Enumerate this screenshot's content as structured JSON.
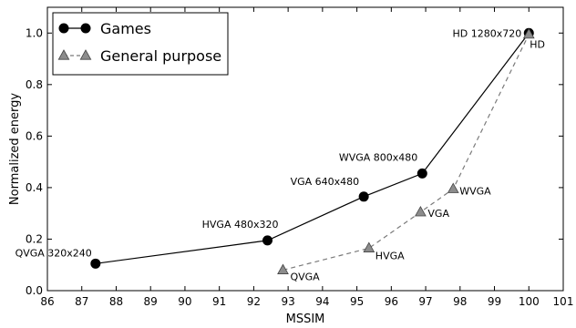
{
  "chart_data": {
    "type": "line",
    "xlabel": "MSSIM",
    "ylabel": "Normalized energy",
    "xlim": [
      86,
      101
    ],
    "ylim": [
      0.0,
      1.1
    ],
    "x_ticks": [
      "86",
      "87",
      "88",
      "89",
      "90",
      "91",
      "92",
      "93",
      "94",
      "95",
      "96",
      "97",
      "98",
      "99",
      "100",
      "101"
    ],
    "y_ticks": [
      "0.0",
      "0.2",
      "0.4",
      "0.6",
      "0.8",
      "1.0"
    ],
    "grid": false,
    "legend_position": "top-left",
    "series": [
      {
        "name": "Games",
        "color": "#000000",
        "line_style": "solid",
        "marker": "circle",
        "points": [
          {
            "x": 87.4,
            "y": 0.105,
            "label": "QVGA 320x240"
          },
          {
            "x": 92.4,
            "y": 0.195,
            "label": "HVGA 480x320"
          },
          {
            "x": 95.2,
            "y": 0.365,
            "label": "VGA 640x480"
          },
          {
            "x": 96.9,
            "y": 0.455,
            "label": "WVGA 800x480"
          },
          {
            "x": 100.0,
            "y": 1.0,
            "label": "HD 1280x720"
          }
        ]
      },
      {
        "name": "General purpose",
        "color": "#808080",
        "line_style": "dashed",
        "marker": "triangle",
        "points": [
          {
            "x": 92.85,
            "y": 0.08,
            "label": "QVGA"
          },
          {
            "x": 95.35,
            "y": 0.165,
            "label": "HVGA"
          },
          {
            "x": 96.85,
            "y": 0.305,
            "label": "VGA"
          },
          {
            "x": 97.8,
            "y": 0.395,
            "label": "WVGA"
          },
          {
            "x": 100.0,
            "y": 0.995,
            "label": "HD"
          }
        ]
      }
    ]
  }
}
